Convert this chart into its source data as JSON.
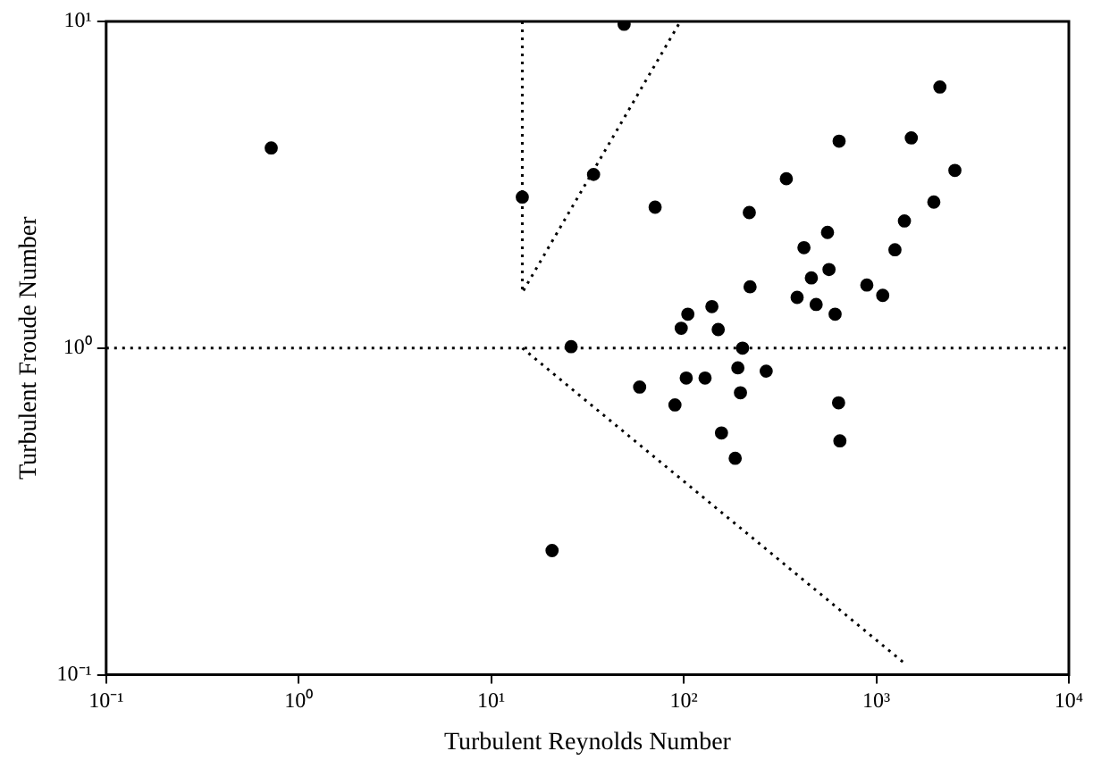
{
  "chart_data": {
    "type": "scatter",
    "xlabel": "Turbulent Reynolds Number",
    "ylabel": "Turbulent Froude Number",
    "log": "xy",
    "grid": false,
    "legend": false,
    "marker": "circle",
    "xlim": [
      0.1,
      10000
    ],
    "ylim": [
      0.1,
      10
    ],
    "xticks": [
      {
        "value": 0.1,
        "label": "10⁻¹"
      },
      {
        "value": 1,
        "label": "10⁰"
      },
      {
        "value": 10,
        "label": "10¹"
      },
      {
        "value": 100,
        "label": "10²"
      },
      {
        "value": 1000,
        "label": "10³"
      },
      {
        "value": 10000,
        "label": "10⁴"
      }
    ],
    "yticks": [
      {
        "value": 0.1,
        "label": "10⁻¹"
      },
      {
        "value": 1,
        "label": "10⁰"
      },
      {
        "value": 10,
        "label": "10¹"
      }
    ],
    "ref_lines": [
      {
        "axis": "y",
        "value": 1,
        "color": "#000000",
        "line_style": "dotted"
      }
    ],
    "series": [
      {
        "color": "#000000",
        "x": [
          0.72,
          14.5,
          49,
          34,
          71,
          219,
          341,
          641,
          1520,
          2140,
          2560,
          1990,
          1400,
          1250,
          558,
          421,
          460,
          568,
          893,
          1080,
          388,
          487,
          611,
          221,
          140,
          105,
          97,
          151,
          202,
          26,
          59,
          90,
          103,
          129,
          191,
          268,
          197,
          157,
          185,
          637,
          647,
          20.7
        ],
        "values": [
          4.1,
          2.9,
          9.8,
          3.4,
          2.7,
          2.6,
          3.3,
          4.3,
          4.4,
          6.3,
          3.5,
          2.8,
          2.45,
          2.0,
          2.26,
          2.03,
          1.64,
          1.74,
          1.56,
          1.45,
          1.43,
          1.36,
          1.27,
          1.54,
          1.34,
          1.27,
          1.15,
          1.14,
          1.0,
          1.01,
          0.76,
          0.67,
          0.81,
          0.81,
          0.87,
          0.85,
          0.73,
          0.55,
          0.46,
          0.68,
          0.52,
          0.24
        ]
      },
      {
        "type": "line",
        "color": "#000000",
        "line_style": "dotted",
        "marker": "none",
        "x": [
          14.5,
          14.5,
          96
        ],
        "values": [
          10,
          1.48,
          10
        ]
      },
      {
        "type": "line",
        "color": "#000000",
        "line_style": "dotted",
        "marker": "none",
        "x": [
          14.5,
          1440
        ],
        "values": [
          1,
          0.107
        ]
      }
    ]
  }
}
